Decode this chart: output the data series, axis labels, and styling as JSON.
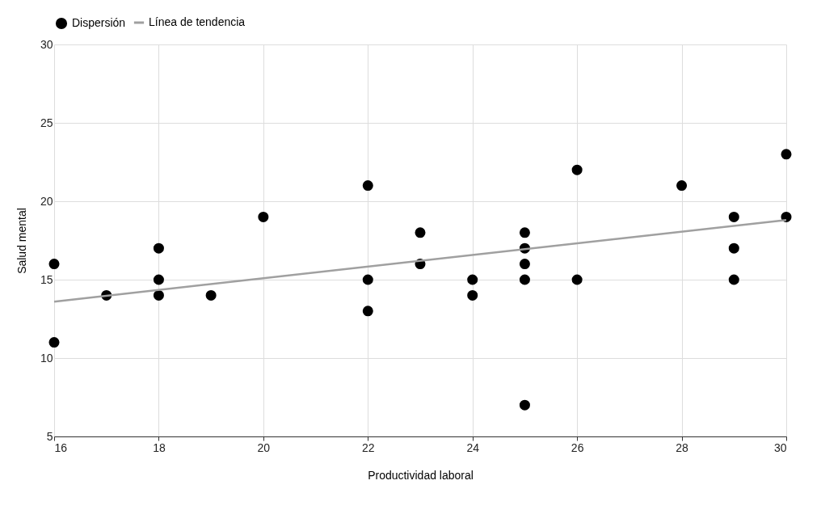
{
  "chart_data": {
    "type": "scatter",
    "xlabel": "Productividad laboral",
    "ylabel": "Salud mental",
    "xlim": [
      16,
      30
    ],
    "xticks": [
      16,
      18,
      20,
      22,
      24,
      26,
      28,
      30
    ],
    "ylim": [
      5,
      30
    ],
    "yticks": [
      5,
      10,
      15,
      20,
      25,
      30
    ],
    "grid": true,
    "legend": "top",
    "series": [
      {
        "name": "Dispersión",
        "marker": "circle",
        "color": "#000000",
        "x": [
          16,
          16,
          17,
          18,
          18,
          18,
          19,
          20,
          22,
          22,
          22,
          23,
          23,
          24,
          24,
          25,
          25,
          25,
          25,
          25,
          26,
          26,
          28,
          29,
          29,
          29,
          30,
          30
        ],
        "values": [
          16,
          11,
          14,
          17,
          15,
          14,
          14,
          19,
          21,
          15,
          13,
          18,
          16,
          15,
          14,
          18,
          17,
          16,
          15,
          7,
          22,
          15,
          21,
          19,
          17,
          15,
          23,
          19
        ]
      },
      {
        "name": "Línea de tendencia",
        "type": "line",
        "color": "#a0a0a0",
        "line_style": "solid",
        "x": [
          16,
          30
        ],
        "values": [
          13.6,
          18.8
        ]
      }
    ]
  }
}
